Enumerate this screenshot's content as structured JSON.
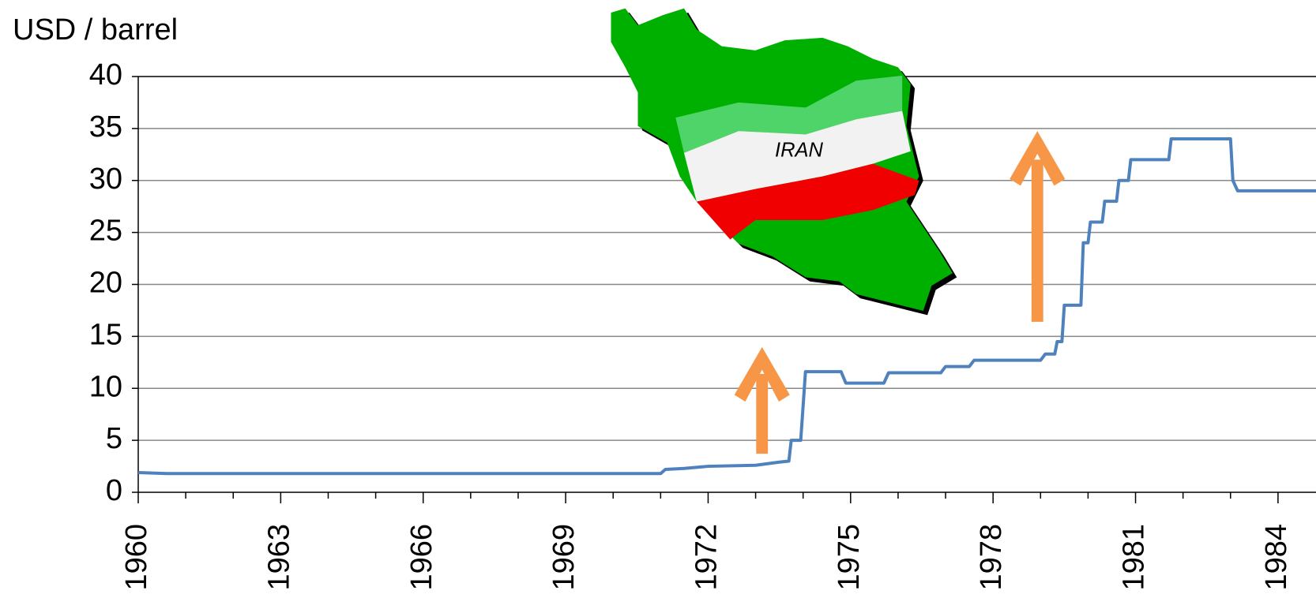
{
  "chart_data": {
    "type": "line",
    "y_label": "USD / barrel",
    "annotation": "IRAN",
    "color": "#4f81bd",
    "x": [
      1960,
      1960.6,
      1971.0,
      1971.1,
      1971.5,
      1972.0,
      1973.0,
      1973.5,
      1973.7,
      1973.75,
      1973.95,
      1974.05,
      1974.8,
      1974.9,
      1975.7,
      1975.8,
      1976.9,
      1977.0,
      1977.5,
      1977.6,
      1979.0,
      1979.1,
      1979.3,
      1979.35,
      1979.45,
      1979.5,
      1979.85,
      1979.9,
      1980.0,
      1980.05,
      1980.3,
      1980.35,
      1980.6,
      1980.65,
      1980.85,
      1980.9,
      1981.7,
      1981.75,
      1983.0,
      1983.05,
      1983.15,
      1984.8
    ],
    "values": [
      1.9,
      1.8,
      1.8,
      2.2,
      2.3,
      2.5,
      2.6,
      2.9,
      3.0,
      5.0,
      5.0,
      11.6,
      11.6,
      10.5,
      10.5,
      11.5,
      11.5,
      12.1,
      12.1,
      12.7,
      12.7,
      13.3,
      13.3,
      14.5,
      14.5,
      18.0,
      18.0,
      24.0,
      24.0,
      26.0,
      26.0,
      28.0,
      28.0,
      30.0,
      30.0,
      32.0,
      32.0,
      34.0,
      34.0,
      30.0,
      29.0,
      29.0
    ],
    "xlim": [
      1960,
      1984.8
    ],
    "xticks": [
      1960,
      1963,
      1966,
      1969,
      1972,
      1975,
      1978,
      1981,
      1984
    ],
    "xticks_minor": [
      1961,
      1962,
      1964,
      1965,
      1967,
      1968,
      1970,
      1971,
      1973,
      1974,
      1976,
      1977,
      1979,
      1980,
      1982,
      1983
    ],
    "ylim": [
      0,
      40
    ],
    "yticks": [
      0,
      5,
      10,
      15,
      20,
      25,
      30,
      35,
      40
    ],
    "grid": true
  }
}
